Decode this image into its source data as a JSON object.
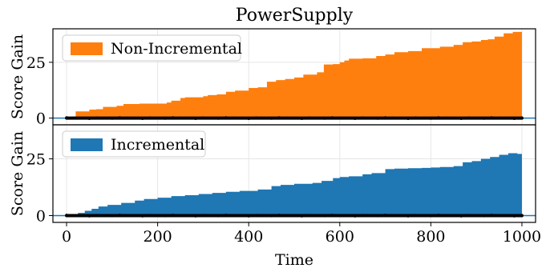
{
  "chart_data": [
    {
      "type": "area",
      "title": "PowerSupply",
      "ylabel": "Score Gain",
      "xlabel": "",
      "xlim": [
        -30,
        1030
      ],
      "ylim": [
        -3,
        40
      ],
      "xticks": [
        0,
        200,
        400,
        600,
        800,
        1000
      ],
      "yticks": [
        0,
        25
      ],
      "grid": true,
      "legend_position": "top-left",
      "fill_color": "#ff7f0e",
      "baseline_color": "#1f77b4",
      "series": [
        {
          "name": "Non-Incremental",
          "x": [
            0,
            18,
            20,
            50,
            65,
            80,
            110,
            125,
            160,
            220,
            230,
            250,
            260,
            300,
            310,
            330,
            350,
            370,
            400,
            420,
            440,
            460,
            480,
            500,
            520,
            550,
            565,
            585,
            600,
            610,
            620,
            650,
            680,
            700,
            720,
            750,
            780,
            820,
            850,
            870,
            890,
            910,
            925,
            940,
            960,
            980,
            1000
          ],
          "y": [
            0,
            0.2,
            3,
            3.8,
            4,
            5,
            5.5,
            6.3,
            6.5,
            7,
            7.8,
            9,
            9.3,
            9.8,
            10.3,
            10.6,
            11.8,
            12.3,
            13.5,
            13.8,
            16.3,
            17,
            17.5,
            18.2,
            19.5,
            20.5,
            24,
            24.2,
            25,
            25.8,
            26.6,
            26.8,
            27.8,
            28.5,
            29.5,
            30,
            31.3,
            32,
            32.8,
            34,
            34.3,
            35,
            35.3,
            36.5,
            38,
            38.6,
            38.5
          ]
        },
        {
          "name": "Baseline",
          "x": [
            0,
            1000
          ],
          "y": [
            0,
            0
          ]
        }
      ]
    },
    {
      "type": "area",
      "title": "",
      "ylabel": "Score Gain",
      "xlabel": "Time",
      "xlim": [
        -30,
        1030
      ],
      "ylim": [
        -3,
        40
      ],
      "xticks": [
        0,
        200,
        400,
        600,
        800,
        1000
      ],
      "yticks": [
        0,
        25
      ],
      "grid": true,
      "legend_position": "top-left",
      "fill_color": "#1f77b4",
      "baseline_color": "#1f77b4",
      "series": [
        {
          "name": "Incremental",
          "x": [
            0,
            15,
            25,
            40,
            55,
            70,
            90,
            120,
            150,
            170,
            200,
            230,
            260,
            290,
            320,
            350,
            380,
            420,
            450,
            470,
            500,
            540,
            560,
            585,
            600,
            620,
            650,
            670,
            700,
            720,
            750,
            780,
            800,
            820,
            850,
            870,
            890,
            910,
            930,
            950,
            970,
            990,
            1000
          ],
          "y": [
            0,
            0.5,
            1.2,
            2.1,
            3,
            4,
            4.7,
            5.6,
            6.6,
            7.3,
            7.9,
            8.6,
            9,
            9.5,
            10,
            10.5,
            10.9,
            11.5,
            13,
            13.5,
            14,
            14.4,
            15.3,
            16.5,
            17,
            17.3,
            18.2,
            18.7,
            20.5,
            20.7,
            20.9,
            21,
            21.2,
            21.4,
            21.8,
            23.5,
            24,
            25,
            25.8,
            26.8,
            27.5,
            27.2,
            27.3
          ]
        },
        {
          "name": "Baseline",
          "x": [
            0,
            1000
          ],
          "y": [
            0,
            0
          ]
        }
      ]
    }
  ]
}
